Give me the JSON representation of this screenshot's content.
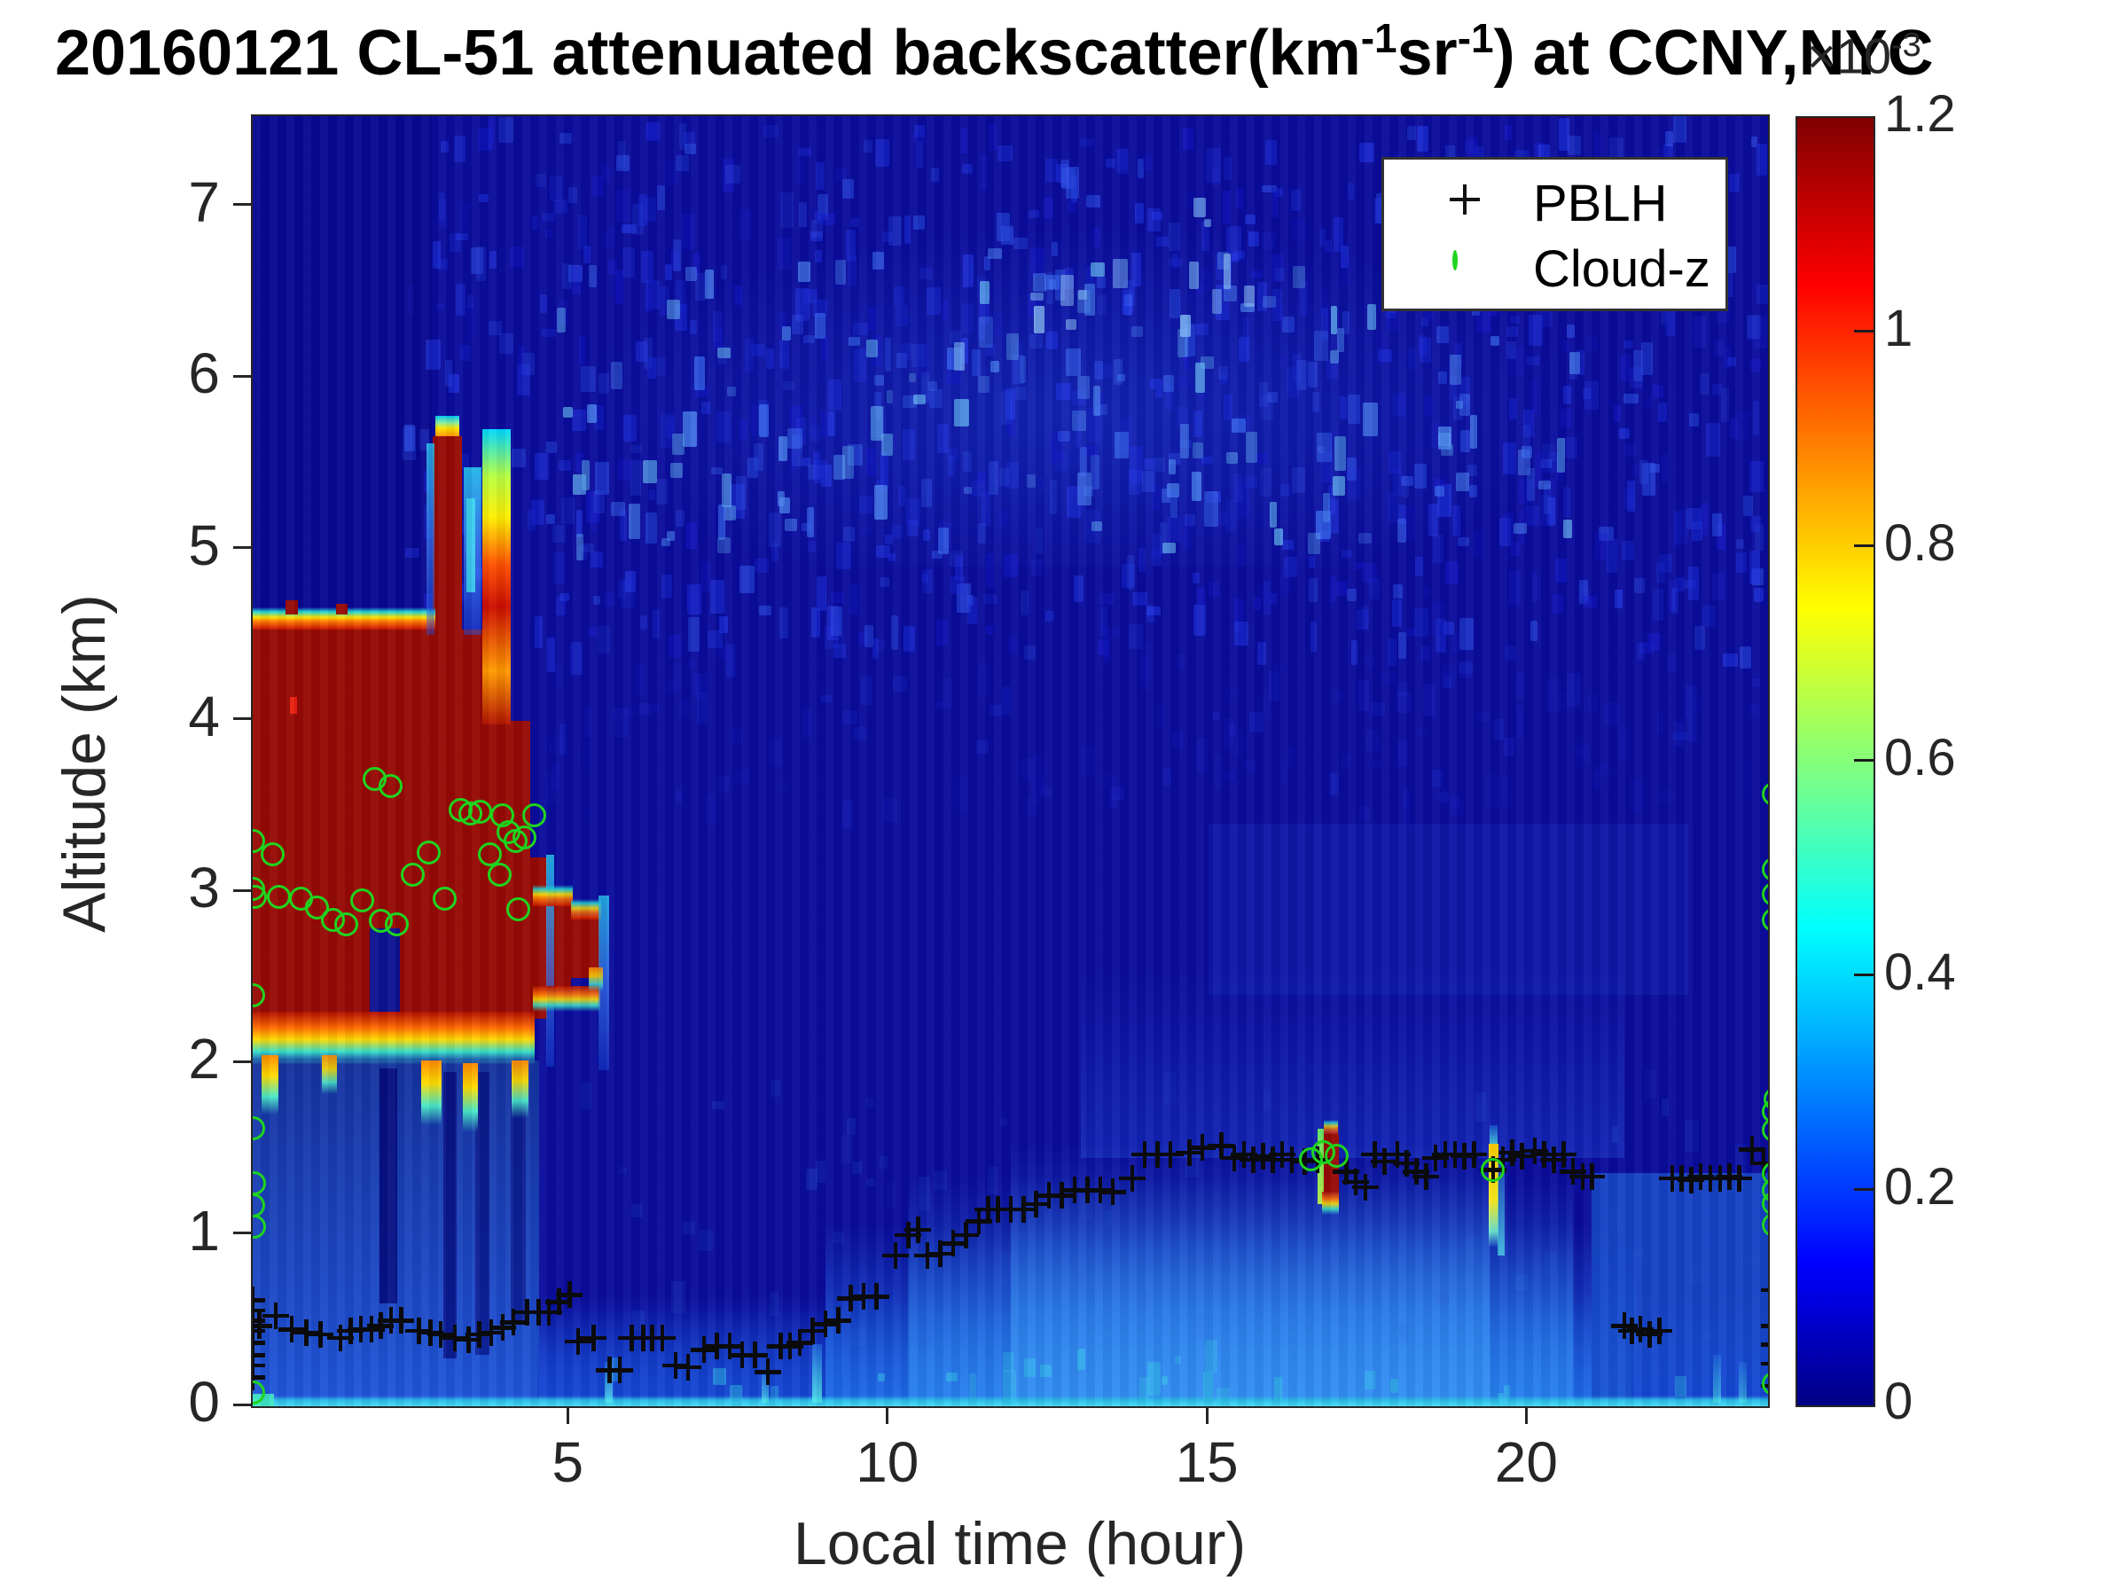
{
  "title": {
    "prefix": "20160121  CL-51 attenuated backscatter(km",
    "sup1": "-1",
    "mid": "sr",
    "sup2": "-1",
    "suffix": ") at CCNY,NYC"
  },
  "axes": {
    "xlabel": "Local time (hour)",
    "ylabel": "Altitude (km)",
    "x_ticks": [
      5,
      10,
      15,
      20
    ],
    "y_ticks": [
      0,
      1,
      2,
      3,
      4,
      5,
      6,
      7
    ]
  },
  "colorbar": {
    "exp_label": "×10",
    "exp_sup": "-3",
    "tick_values": [
      0,
      0.2,
      0.4,
      0.6,
      0.8,
      1,
      1.2
    ],
    "tick_labels": [
      "0",
      "0.2",
      "0.4",
      "0.6",
      "0.8",
      "1",
      "1.2"
    ],
    "min": 0,
    "max": 1.2,
    "jet_stops": [
      "#000084",
      "#0000ff",
      "#00ffff",
      "#ffff00",
      "#ff0000",
      "#800000"
    ],
    "jet_pos": [
      0,
      11,
      37,
      62,
      87,
      100
    ]
  },
  "legend": {
    "items": [
      {
        "label": "PBLH",
        "marker": "plus",
        "color": "#111111"
      },
      {
        "label": "Cloud-z",
        "marker": "circle",
        "color": "#1fd41f"
      }
    ]
  },
  "chart_data": {
    "type": "heatmap",
    "title": "20160121  CL-51 attenuated backscatter(km-1 sr-1) at CCNY,NYC",
    "xlabel": "Local time (hour)",
    "ylabel": "Altitude (km)",
    "xlim": [
      0,
      24
    ],
    "ylim": [
      0,
      7.55
    ],
    "colorbar_range_e3": [
      0,
      1.2
    ],
    "colormap": "jet",
    "description": "Ceilometer attenuated backscatter time-height map. Saturated (dark red, >=1.2e-3) cloud/precipitation deck 0:00-4:30 local time between ~2.0 and ~4.6 km with spike to ~5.7 km near 3:00; faint noise speckle above 4.5 km after 03:00; bright boundary layer below ~1.5 km growing through the afternoon; small liquid cloud echoes near 1.3-1.6 km at ~17:00 and ~19:30.",
    "pblh_series_t_km": [
      [
        0.03,
        0.62
      ],
      [
        0.03,
        0.56
      ],
      [
        0.03,
        0.5
      ],
      [
        0.03,
        0.44
      ],
      [
        0.03,
        0.37
      ],
      [
        0.03,
        0.3
      ],
      [
        0.03,
        0.24
      ],
      [
        0.03,
        0.17
      ],
      [
        0.14,
        0.47
      ],
      [
        0.4,
        0.53
      ],
      [
        0.65,
        0.45
      ],
      [
        0.88,
        0.43
      ],
      [
        1.1,
        0.42
      ],
      [
        1.41,
        0.4
      ],
      [
        1.57,
        0.44
      ],
      [
        1.73,
        0.45
      ],
      [
        1.9,
        0.45
      ],
      [
        2.04,
        0.47
      ],
      [
        2.2,
        0.5
      ],
      [
        2.36,
        0.5
      ],
      [
        2.64,
        0.44
      ],
      [
        2.82,
        0.43
      ],
      [
        2.98,
        0.42
      ],
      [
        3.2,
        0.4
      ],
      [
        3.42,
        0.39
      ],
      [
        3.58,
        0.42
      ],
      [
        3.77,
        0.43
      ],
      [
        3.95,
        0.46
      ],
      [
        4.12,
        0.49
      ],
      [
        4.33,
        0.55
      ],
      [
        4.51,
        0.55
      ],
      [
        4.67,
        0.55
      ],
      [
        4.83,
        0.61
      ],
      [
        5.0,
        0.65
      ],
      [
        5.13,
        0.38
      ],
      [
        5.37,
        0.4
      ],
      [
        5.62,
        0.21
      ],
      [
        5.78,
        0.21
      ],
      [
        5.97,
        0.4
      ],
      [
        6.15,
        0.4
      ],
      [
        6.29,
        0.4
      ],
      [
        6.45,
        0.4
      ],
      [
        6.66,
        0.24
      ],
      [
        6.85,
        0.23
      ],
      [
        7.1,
        0.33
      ],
      [
        7.3,
        0.35
      ],
      [
        7.5,
        0.35
      ],
      [
        7.7,
        0.3
      ],
      [
        7.9,
        0.3
      ],
      [
        8.1,
        0.2
      ],
      [
        8.3,
        0.35
      ],
      [
        8.45,
        0.35
      ],
      [
        8.6,
        0.37
      ],
      [
        8.8,
        0.44
      ],
      [
        9.0,
        0.48
      ],
      [
        9.2,
        0.5
      ],
      [
        9.4,
        0.63
      ],
      [
        9.6,
        0.64
      ],
      [
        9.8,
        0.64
      ],
      [
        10.1,
        0.88
      ],
      [
        10.3,
        1.0
      ],
      [
        10.45,
        1.03
      ],
      [
        10.6,
        0.88
      ],
      [
        10.8,
        0.89
      ],
      [
        11.0,
        0.95
      ],
      [
        11.2,
        1.0
      ],
      [
        11.4,
        1.08
      ],
      [
        11.55,
        1.15
      ],
      [
        11.7,
        1.15
      ],
      [
        11.9,
        1.15
      ],
      [
        12.1,
        1.15
      ],
      [
        12.3,
        1.18
      ],
      [
        12.5,
        1.23
      ],
      [
        12.7,
        1.23
      ],
      [
        12.9,
        1.26
      ],
      [
        13.1,
        1.26
      ],
      [
        13.3,
        1.26
      ],
      [
        13.5,
        1.25
      ],
      [
        13.8,
        1.33
      ],
      [
        14.0,
        1.47
      ],
      [
        14.2,
        1.47
      ],
      [
        14.4,
        1.47
      ],
      [
        14.7,
        1.48
      ],
      [
        14.9,
        1.51
      ],
      [
        15.2,
        1.52
      ],
      [
        15.4,
        1.45
      ],
      [
        15.55,
        1.47
      ],
      [
        15.7,
        1.44
      ],
      [
        15.85,
        1.46
      ],
      [
        16.0,
        1.44
      ],
      [
        16.15,
        1.47
      ],
      [
        16.3,
        1.44
      ],
      [
        16.5,
        1.43
      ],
      [
        16.7,
        1.44
      ],
      [
        17.15,
        1.37
      ],
      [
        17.3,
        1.31
      ],
      [
        17.45,
        1.28
      ],
      [
        17.6,
        1.47
      ],
      [
        17.75,
        1.43
      ],
      [
        17.95,
        1.47
      ],
      [
        18.1,
        1.42
      ],
      [
        18.25,
        1.37
      ],
      [
        18.4,
        1.34
      ],
      [
        18.55,
        1.45
      ],
      [
        18.7,
        1.47
      ],
      [
        18.85,
        1.47
      ],
      [
        19.0,
        1.46
      ],
      [
        19.15,
        1.47
      ],
      [
        19.45,
        1.38
      ],
      [
        19.6,
        1.44
      ],
      [
        19.75,
        1.48
      ],
      [
        19.9,
        1.46
      ],
      [
        20.1,
        1.49
      ],
      [
        20.25,
        1.47
      ],
      [
        20.4,
        1.44
      ],
      [
        20.55,
        1.47
      ],
      [
        20.7,
        1.37
      ],
      [
        20.85,
        1.34
      ],
      [
        21.0,
        1.34
      ],
      [
        21.5,
        0.47
      ],
      [
        21.62,
        0.44
      ],
      [
        21.75,
        0.45
      ],
      [
        21.9,
        0.42
      ],
      [
        22.05,
        0.44
      ],
      [
        22.25,
        1.33
      ],
      [
        22.4,
        1.33
      ],
      [
        22.55,
        1.32
      ],
      [
        22.7,
        1.34
      ],
      [
        22.85,
        1.33
      ],
      [
        23.0,
        1.33
      ],
      [
        23.15,
        1.34
      ],
      [
        23.3,
        1.33
      ],
      [
        23.5,
        1.5
      ],
      [
        23.68,
        1.42
      ],
      [
        23.85,
        0.68
      ],
      [
        23.85,
        0.47
      ],
      [
        23.85,
        0.36
      ],
      [
        23.85,
        0.25
      ],
      [
        23.85,
        0.12
      ]
    ],
    "cloud_z_t_km": [
      [
        0.05,
        3.3
      ],
      [
        0.05,
        3.02
      ],
      [
        0.08,
        2.97
      ],
      [
        0.05,
        2.4
      ],
      [
        0.05,
        1.62
      ],
      [
        0.06,
        1.3
      ],
      [
        0.05,
        1.17
      ],
      [
        0.06,
        1.05
      ],
      [
        0.05,
        0.08
      ],
      [
        0.35,
        3.22
      ],
      [
        0.45,
        2.97
      ],
      [
        0.8,
        2.96
      ],
      [
        1.05,
        2.91
      ],
      [
        1.3,
        2.84
      ],
      [
        1.5,
        2.81
      ],
      [
        1.75,
        2.95
      ],
      [
        1.95,
        3.66
      ],
      [
        2.05,
        2.83
      ],
      [
        2.2,
        3.62
      ],
      [
        2.3,
        2.81
      ],
      [
        2.55,
        3.1
      ],
      [
        2.8,
        3.23
      ],
      [
        3.05,
        2.96
      ],
      [
        3.3,
        3.48
      ],
      [
        3.45,
        3.46
      ],
      [
        3.6,
        3.47
      ],
      [
        3.75,
        3.22
      ],
      [
        3.9,
        3.1
      ],
      [
        3.95,
        3.45
      ],
      [
        4.05,
        3.35
      ],
      [
        4.15,
        3.3
      ],
      [
        4.2,
        2.9
      ],
      [
        4.3,
        3.32
      ],
      [
        4.45,
        3.45
      ],
      [
        16.6,
        1.44
      ],
      [
        16.8,
        1.48
      ],
      [
        17.0,
        1.46
      ],
      [
        19.45,
        1.38
      ],
      [
        23.85,
        3.57
      ],
      [
        23.85,
        3.13
      ],
      [
        23.85,
        2.99
      ],
      [
        23.85,
        2.84
      ],
      [
        23.87,
        1.79
      ],
      [
        23.85,
        1.72
      ],
      [
        23.85,
        1.61
      ],
      [
        23.85,
        1.36
      ],
      [
        23.85,
        1.26
      ],
      [
        23.85,
        1.18
      ],
      [
        23.85,
        1.06
      ],
      [
        23.85,
        0.13
      ]
    ],
    "heat_regions_t0_t1_km0_km1_kind_opacity": [
      [
        0.0,
        2.85,
        4.66,
        7.53,
        "navy2",
        1
      ],
      [
        5.0,
        21.0,
        4.9,
        6.9,
        "glow",
        1
      ],
      [
        13.0,
        21.5,
        1.45,
        2.55,
        "hazefan",
        1
      ],
      [
        15.0,
        22.5,
        2.4,
        3.4,
        "haze",
        0.35
      ],
      [
        0.0,
        23.75,
        0.0,
        0.66,
        "lower1",
        1
      ],
      [
        0.04,
        4.52,
        0.0,
        2.02,
        "undercloud",
        0.95
      ],
      [
        4.5,
        9.3,
        0.0,
        0.58,
        "lower2",
        1
      ],
      [
        9.0,
        21.7,
        0.0,
        1.06,
        "wedge1",
        0.95
      ],
      [
        10.3,
        20.7,
        0.0,
        1.33,
        "wedge2",
        0.85
      ],
      [
        11.9,
        19.4,
        0.0,
        1.52,
        "wedge3",
        0.8
      ],
      [
        21.0,
        23.75,
        0.0,
        1.36,
        "band",
        0.8
      ],
      [
        21.6,
        23.75,
        0.0,
        0.52,
        "lower2",
        1
      ],
      [
        2.02,
        2.3,
        0.6,
        1.97,
        "dark",
        0.8
      ],
      [
        3.02,
        3.24,
        0.28,
        1.95,
        "dark",
        0.7
      ],
      [
        3.52,
        3.74,
        0.3,
        1.95,
        "dark",
        0.6
      ],
      [
        4.08,
        4.32,
        0.5,
        1.95,
        "dark",
        0.55
      ],
      [
        0.0,
        23.75,
        0.0,
        0.06,
        "surface",
        1
      ],
      [
        0.0,
        0.38,
        0.0,
        0.075,
        "surfgreen",
        0.9
      ],
      [
        0.04,
        3.66,
        2.26,
        4.53,
        "red",
        1
      ],
      [
        3.64,
        4.38,
        2.26,
        4.0,
        "red",
        1
      ],
      [
        4.36,
        4.65,
        2.26,
        3.2,
        "red",
        1
      ],
      [
        4.42,
        5.02,
        2.43,
        2.94,
        "red",
        1
      ],
      [
        5.0,
        5.48,
        2.5,
        2.86,
        "red",
        1
      ],
      [
        2.86,
        3.32,
        4.5,
        5.66,
        "red",
        1
      ],
      [
        2.9,
        3.28,
        5.66,
        5.78,
        "cap",
        1
      ],
      [
        0.04,
        2.9,
        4.53,
        4.66,
        "fringetop",
        1
      ],
      [
        0.55,
        0.75,
        4.62,
        4.7,
        "red",
        1
      ],
      [
        1.35,
        1.52,
        4.62,
        4.68,
        "red",
        1
      ],
      [
        0.63,
        0.73,
        4.04,
        4.14,
        "brightred",
        1
      ],
      [
        3.34,
        3.62,
        4.5,
        5.48,
        "cyancol",
        0.95
      ],
      [
        3.38,
        3.52,
        4.75,
        5.3,
        "brightcyan",
        0.8
      ],
      [
        2.76,
        2.88,
        4.5,
        5.62,
        "cyancol",
        0.85
      ],
      [
        3.64,
        4.08,
        3.98,
        5.7,
        "rainbowB",
        1
      ],
      [
        1.88,
        2.34,
        2.3,
        2.79,
        "notch",
        1
      ],
      [
        1.96,
        2.14,
        2.18,
        2.32,
        "notch",
        0.9
      ],
      [
        0.04,
        4.45,
        1.99,
        2.3,
        "fringebot",
        1
      ],
      [
        0.18,
        0.45,
        1.7,
        2.05,
        "finger",
        1
      ],
      [
        1.12,
        1.36,
        1.82,
        2.05,
        "finger",
        0.9
      ],
      [
        2.68,
        3.0,
        1.64,
        2.02,
        "finger",
        1
      ],
      [
        3.33,
        3.56,
        1.6,
        2.0,
        "finger",
        1
      ],
      [
        4.1,
        4.36,
        1.68,
        2.02,
        "finger",
        0.95
      ],
      [
        4.63,
        4.76,
        1.98,
        3.22,
        "cyancol",
        0.9
      ],
      [
        4.42,
        5.48,
        2.3,
        2.45,
        "fringebot",
        0.9
      ],
      [
        4.42,
        5.05,
        2.92,
        3.04,
        "fringetop",
        0.9
      ],
      [
        5.02,
        5.5,
        2.84,
        2.96,
        "fringetop",
        0.85
      ],
      [
        5.45,
        5.62,
        1.96,
        2.98,
        "cyancol",
        0.85
      ],
      [
        5.3,
        5.52,
        2.42,
        2.56,
        "finger",
        0.8
      ],
      [
        16.78,
        17.04,
        1.25,
        1.59,
        "red",
        1
      ],
      [
        16.7,
        16.8,
        1.18,
        1.62,
        "greencol",
        0.95
      ],
      [
        16.78,
        17.04,
        1.12,
        1.25,
        "fringebot",
        0.9
      ],
      [
        16.8,
        17.02,
        1.59,
        1.67,
        "fringetop",
        0.8
      ],
      [
        19.38,
        19.54,
        0.93,
        1.53,
        "yellowcol",
        1
      ],
      [
        19.52,
        19.64,
        0.88,
        1.45,
        "cyanv",
        0.7
      ],
      [
        19.4,
        19.52,
        1.53,
        1.64,
        "cyanv",
        0.8
      ],
      [
        5.55,
        5.68,
        0.02,
        0.26,
        "cyanv",
        0.8
      ],
      [
        8.0,
        8.12,
        0.02,
        0.2,
        "cyanv",
        0.7
      ],
      [
        8.8,
        8.95,
        0.02,
        0.36,
        "cyanv",
        0.9
      ],
      [
        22.9,
        23.02,
        0.02,
        0.3,
        "cyanv",
        0.6
      ],
      [
        23.3,
        23.42,
        0.02,
        0.26,
        "cyanv",
        0.5
      ]
    ],
    "speckle_fields": [
      {
        "seed": 7,
        "n": 850,
        "t0": 2.4,
        "t1": 23.7,
        "k0": 4.35,
        "k1": 7.45,
        "colors": [
          "#1418c8",
          "#1a2ad8",
          "#2238e8",
          "#2c50e8"
        ],
        "amin": 0.18,
        "amax": 0.6
      },
      {
        "seed": 31,
        "n": 150,
        "t0": 4.8,
        "t1": 20.8,
        "k0": 5.0,
        "k1": 6.75,
        "colors": [
          "#3a6cf2",
          "#4f8cf4",
          "#62b4f0"
        ],
        "amin": 0.3,
        "amax": 0.75
      },
      {
        "seed": 55,
        "n": 14,
        "t0": 10.8,
        "t1": 16.8,
        "k0": 6.1,
        "k1": 7.0,
        "colors": [
          "#8fc4f8",
          "#7ab4f4"
        ],
        "amin": 0.5,
        "amax": 0.85
      },
      {
        "seed": 83,
        "n": 130,
        "t0": 4.5,
        "t1": 23.7,
        "k0": 3.45,
        "k1": 4.35,
        "colors": [
          "#141cc0",
          "#1c2cd4"
        ],
        "amin": 0.12,
        "amax": 0.3
      },
      {
        "seed": 19,
        "n": 60,
        "t0": 5.0,
        "t1": 23.5,
        "k0": 0.4,
        "k1": 1.9,
        "colors": [
          "#2f6ce0",
          "#2a5cd8"
        ],
        "amin": 0.08,
        "amax": 0.2
      },
      {
        "seed": 91,
        "n": 25,
        "t0": 5.0,
        "t1": 23.0,
        "k0": 0.02,
        "k1": 0.3,
        "colors": [
          "#35c8e8"
        ],
        "amin": 0.3,
        "amax": 0.55
      }
    ]
  }
}
